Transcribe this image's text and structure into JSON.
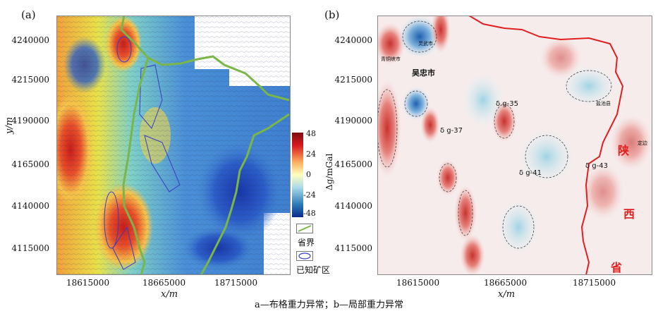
{
  "figure": {
    "panel_a_label": "(a)",
    "panel_b_label": "(b)",
    "caption": "a—布格重力异常；b—局部重力异常"
  },
  "panel_a": {
    "y_axis_label": "y/m",
    "x_axis_label": "x/m",
    "y_ticks": [
      "4240000",
      "4215000",
      "4190000",
      "4165000",
      "4140000",
      "4115000"
    ],
    "x_ticks": [
      "18615000",
      "18665000",
      "18715000"
    ],
    "colorbar": {
      "label": "Δg/mGal",
      "ticks": [
        "48",
        "24",
        "0",
        "-24",
        "-48"
      ],
      "colors": [
        "#7a0f12",
        "#d7191c",
        "#fdae61",
        "#ffffbf",
        "#abd9e9",
        "#2c7bb6",
        "#0a2a8c"
      ]
    },
    "legend": [
      {
        "label": "省界",
        "color": "#7ab648"
      },
      {
        "label": "已知矿区",
        "color": "#3a3ac8"
      }
    ]
  },
  "panel_b": {
    "x_axis_label": "x/m",
    "y_ticks": [
      "4240000",
      "4215000",
      "4190000",
      "4165000",
      "4140000",
      "4115000"
    ],
    "x_ticks": [
      "18615000",
      "18665000",
      "18715000"
    ],
    "map_labels": {
      "wuzhong": "吴忠市",
      "qingtongxia": "青铜峡市",
      "lingwu": "灵武市",
      "yanchi": "盐池县",
      "dingbian": "定边",
      "g35": "δ g-35",
      "g37": "δ g-37",
      "g41": "δ g-41",
      "g43": "δ g-43"
    },
    "province_chars": [
      "陕",
      "西",
      "省"
    ],
    "boundary_color": "#e02020"
  }
}
